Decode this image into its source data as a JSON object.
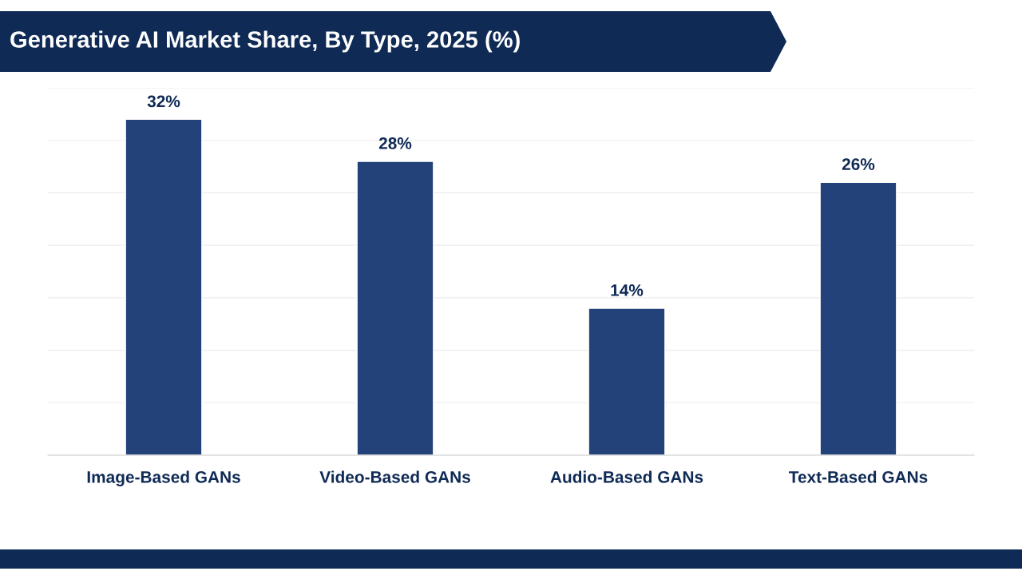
{
  "chart_data": {
    "type": "bar",
    "title": "Generative AI Market Share, By Type, 2025 (%)",
    "categories": [
      "Image-Based GANs",
      "Video-Based GANs",
      "Audio-Based GANs",
      "Text-Based GANs"
    ],
    "values": [
      32,
      28,
      14,
      26
    ],
    "value_labels": [
      "32%",
      "28%",
      "14%",
      "26%"
    ],
    "color": "#24427a",
    "ylim": [
      0,
      35
    ],
    "yticks": [
      {
        "value": 0,
        "label": null
      },
      {
        "value": 5,
        "label": null
      },
      {
        "value": 10,
        "label": null
      },
      {
        "value": 15,
        "label": null
      },
      {
        "value": 20,
        "label": null
      },
      {
        "value": 25,
        "label": null
      },
      {
        "value": 30,
        "label": null
      },
      {
        "value": 35,
        "label": null
      }
    ],
    "tick_labels": "x",
    "grid": "y"
  }
}
